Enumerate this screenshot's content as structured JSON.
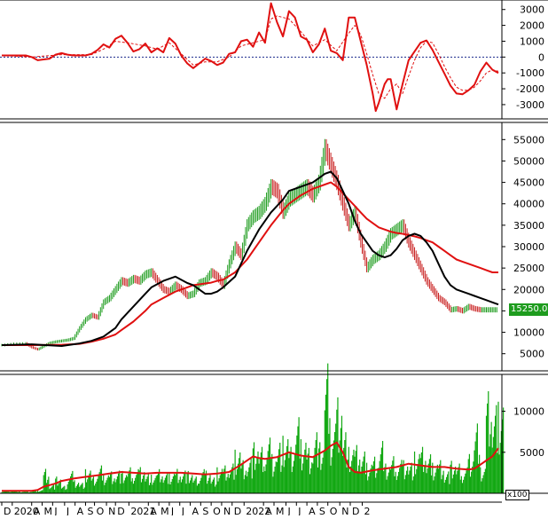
{
  "colors": {
    "background": "#ffffff",
    "frame": "#000000",
    "candle_up": "#1e9c1e",
    "candle_down": "#c81e1e",
    "ma_fast": "#000000",
    "ma_slow": "#e01010",
    "volume_bar": "#12a812",
    "volume_ma": "#e01010",
    "macd_line": "#e01010",
    "signal_line": "#e01010",
    "zero_line": "#1a2a8c"
  },
  "price_badge": "15250.00",
  "volume_unit": "x100",
  "chart_data": [
    {
      "type": "line",
      "panel": "oscillator",
      "title": "",
      "xlabel": "",
      "ylabel": "",
      "ylim": [
        -3900,
        3600
      ],
      "y_ticks": [
        3000,
        2000,
        1000,
        0,
        -1000,
        -2000,
        -3000
      ],
      "y_tick_labels": [
        "3000",
        "2000",
        "1000",
        "0",
        "-1000",
        "-2000",
        "-3000"
      ],
      "zero_line": "dotted",
      "series": [
        {
          "style": "solid",
          "x": [
            0,
            4,
            8,
            10,
            12,
            14,
            16,
            18,
            20,
            22,
            24,
            26,
            28,
            30,
            32,
            34,
            36,
            38,
            40,
            42,
            44,
            46,
            48,
            50,
            52,
            54,
            56,
            58,
            60,
            62,
            64,
            66,
            68,
            70,
            72,
            74,
            76,
            78,
            80,
            82,
            84,
            86,
            88,
            90,
            92,
            94,
            96,
            98,
            100,
            102,
            104,
            106,
            108,
            110,
            112,
            114,
            116,
            118,
            120,
            122,
            124,
            125,
            126,
            128,
            129,
            130,
            132,
            134,
            136,
            138,
            140,
            142,
            144,
            146,
            148,
            150,
            152,
            154,
            156,
            158,
            160,
            162,
            164,
            166
          ],
          "values": [
            100,
            100,
            100,
            0,
            -200,
            -150,
            -100,
            150,
            250,
            150,
            100,
            100,
            100,
            200,
            450,
            800,
            600,
            1150,
            1350,
            900,
            350,
            500,
            850,
            300,
            550,
            300,
            1200,
            850,
            100,
            -400,
            -700,
            -400,
            -100,
            -250,
            -500,
            -350,
            200,
            300,
            1000,
            1100,
            650,
            1550,
            900,
            3400,
            2200,
            1300,
            2900,
            2500,
            1300,
            1100,
            300,
            800,
            1800,
            400,
            250,
            -200,
            2500,
            2500,
            1000,
            -500,
            -2300,
            -3400,
            -2900,
            -1700,
            -1400,
            -1400,
            -3300,
            -1700,
            -200,
            350,
            900,
            1050,
            450,
            -300,
            -1050,
            -1800,
            -2300,
            -2350,
            -2100,
            -1750,
            -900,
            -350,
            -800,
            -1000
          ]
        },
        {
          "style": "dashed",
          "x": [
            0,
            10,
            20,
            30,
            34,
            38,
            42,
            48,
            52,
            56,
            60,
            64,
            68,
            72,
            76,
            80,
            84,
            88,
            90,
            92,
            96,
            100,
            104,
            108,
            112,
            116,
            118,
            120,
            122,
            124,
            126,
            128,
            130,
            132,
            134,
            136,
            138,
            140,
            142,
            144,
            146,
            148,
            150,
            152,
            154,
            156,
            158,
            160,
            162,
            164,
            166
          ],
          "values": [
            100,
            0,
            150,
            150,
            500,
            1000,
            900,
            700,
            500,
            900,
            200,
            -500,
            -300,
            -300,
            0,
            700,
            900,
            1100,
            2400,
            2600,
            2400,
            1600,
            700,
            1100,
            400,
            1500,
            2000,
            1400,
            200,
            -1100,
            -2300,
            -2600,
            -2000,
            -1700,
            -2300,
            -1200,
            -200,
            600,
            1000,
            900,
            200,
            -600,
            -1300,
            -1900,
            -2100,
            -2100,
            -1900,
            -1500,
            -1000,
            -800,
            -900
          ]
        }
      ]
    },
    {
      "type": "line",
      "panel": "price",
      "title": "",
      "xlabel": "",
      "ylabel": "",
      "ylim": [
        1000,
        59000
      ],
      "y_ticks": [
        55000,
        50000,
        45000,
        40000,
        35000,
        30000,
        25000,
        20000,
        15000,
        10000,
        5000
      ],
      "y_tick_labels": [
        "55000",
        "50000",
        "45000",
        "40000",
        "35000",
        "30000",
        "25000",
        "20000",
        "15000",
        "10000",
        "5000"
      ],
      "last_price": 15250,
      "series": [
        {
          "kind": "close",
          "x": [
            0,
            4,
            8,
            10,
            12,
            14,
            16,
            18,
            20,
            22,
            24,
            26,
            28,
            30,
            32,
            34,
            36,
            38,
            40,
            42,
            44,
            46,
            48,
            50,
            52,
            54,
            56,
            58,
            60,
            62,
            64,
            66,
            68,
            70,
            72,
            74,
            76,
            78,
            80,
            82,
            84,
            86,
            88,
            90,
            92,
            94,
            96,
            98,
            100,
            102,
            104,
            106,
            108,
            110,
            112,
            114,
            116,
            118,
            120,
            122,
            124,
            126,
            128,
            130,
            132,
            134,
            136,
            138,
            140,
            142,
            144,
            146,
            148,
            150,
            152,
            154,
            156,
            158,
            160,
            162,
            164,
            166
          ],
          "values": [
            7000,
            7300,
            7400,
            6500,
            6000,
            6800,
            7500,
            7800,
            8000,
            8200,
            8600,
            11000,
            13000,
            14000,
            13500,
            17000,
            18000,
            20000,
            22000,
            21500,
            22500,
            22000,
            23500,
            24000,
            22000,
            20000,
            19500,
            21000,
            20000,
            18500,
            19000,
            21500,
            22000,
            24000,
            23000,
            21000,
            26000,
            30000,
            28000,
            35000,
            37000,
            38000,
            40000,
            44000,
            43000,
            38000,
            41000,
            42000,
            43000,
            44000,
            42000,
            45000,
            53000,
            49000,
            45000,
            40000,
            35000,
            38000,
            31000,
            25000,
            27000,
            28000,
            30000,
            33000,
            34000,
            35000,
            31000,
            28000,
            25000,
            22000,
            20000,
            18000,
            17000,
            15250,
            15500,
            15000,
            16000,
            15500,
            15250,
            15250,
            15250,
            15250
          ]
        },
        {
          "kind": "ma_fast",
          "x": [
            0,
            10,
            20,
            26,
            30,
            34,
            38,
            40,
            44,
            48,
            50,
            54,
            58,
            62,
            64,
            66,
            68,
            70,
            72,
            74,
            78,
            82,
            86,
            90,
            94,
            96,
            100,
            104,
            106,
            108,
            110,
            112,
            114,
            116,
            118,
            120,
            122,
            124,
            126,
            128,
            130,
            132,
            134,
            136,
            138,
            140,
            142,
            144,
            146,
            148,
            150,
            152,
            154,
            156,
            158,
            160,
            162,
            164,
            166
          ],
          "values": [
            7000,
            7200,
            6800,
            7400,
            8000,
            9000,
            11000,
            13000,
            16000,
            19000,
            20500,
            22000,
            23000,
            21500,
            21000,
            20000,
            19000,
            19000,
            19500,
            20500,
            23000,
            29000,
            34000,
            38000,
            41000,
            43000,
            44000,
            45000,
            46000,
            47000,
            47500,
            46000,
            43000,
            40000,
            36000,
            33000,
            31000,
            29000,
            28000,
            27500,
            28000,
            29500,
            31500,
            32500,
            33000,
            32500,
            31000,
            29000,
            26000,
            23000,
            21000,
            20000,
            19500,
            19000,
            18500,
            18000,
            17500,
            17000,
            16500
          ]
        },
        {
          "kind": "ma_slow",
          "x": [
            0,
            10,
            20,
            26,
            30,
            34,
            38,
            40,
            44,
            48,
            50,
            54,
            58,
            62,
            64,
            66,
            68,
            70,
            72,
            74,
            78,
            82,
            86,
            90,
            94,
            96,
            100,
            104,
            106,
            108,
            110,
            112,
            114,
            116,
            118,
            120,
            122,
            124,
            126,
            128,
            130,
            132,
            134,
            136,
            138,
            140,
            142,
            144,
            146,
            148,
            150,
            152,
            154,
            156,
            158,
            160,
            162,
            164,
            166
          ],
          "values": [
            7000,
            7000,
            7100,
            7300,
            7800,
            8500,
            9500,
            10500,
            12500,
            15000,
            16500,
            18000,
            19500,
            20500,
            21000,
            21200,
            21400,
            21600,
            22000,
            22300,
            24000,
            27000,
            31000,
            35000,
            38500,
            40000,
            42000,
            43500,
            44000,
            44500,
            45000,
            44000,
            42500,
            41000,
            39500,
            38000,
            36500,
            35500,
            34500,
            34000,
            33500,
            33200,
            33000,
            32700,
            32400,
            32000,
            31500,
            31000,
            30000,
            29000,
            28000,
            27000,
            26500,
            26000,
            25500,
            25000,
            24500,
            24000,
            24000
          ]
        }
      ]
    },
    {
      "type": "bar",
      "panel": "volume",
      "title": "",
      "xlabel": "",
      "ylabel": "",
      "ylim": [
        0,
        14500
      ],
      "y_ticks": [
        10000,
        5000
      ],
      "y_tick_labels": [
        "10000",
        "5000"
      ],
      "unit": "x100",
      "x": [
        0,
        2,
        4,
        6,
        8,
        10,
        12,
        14,
        16,
        18,
        20,
        22,
        24,
        26,
        28,
        30,
        32,
        34,
        36,
        38,
        40,
        42,
        44,
        46,
        48,
        50,
        52,
        54,
        56,
        58,
        60,
        62,
        64,
        66,
        68,
        70,
        72,
        74,
        76,
        78,
        80,
        82,
        84,
        86,
        88,
        90,
        92,
        94,
        96,
        98,
        100,
        102,
        104,
        106,
        108,
        110,
        112,
        114,
        116,
        118,
        120,
        122,
        124,
        126,
        128,
        130,
        132,
        134,
        136,
        138,
        140,
        142,
        144,
        146,
        148,
        150,
        152,
        154,
        156,
        158,
        160,
        162,
        164,
        166
      ],
      "values": [
        300,
        300,
        300,
        200,
        200,
        300,
        400,
        2800,
        1000,
        1800,
        800,
        2400,
        1500,
        1200,
        2600,
        1800,
        3000,
        2200,
        2500,
        2600,
        2400,
        2800,
        2600,
        3000,
        2200,
        2000,
        2600,
        2200,
        2400,
        2800,
        2600,
        2400,
        1800,
        2600,
        2600,
        1800,
        2800,
        3000,
        3200,
        5000,
        3800,
        4000,
        5500,
        5000,
        6000,
        4500,
        5800,
        6200,
        5000,
        8200,
        6200,
        5200,
        7000,
        5500,
        14000,
        7500,
        11000,
        7000,
        5000,
        5200,
        4500,
        3500,
        4200,
        6000,
        3200,
        4000,
        3600,
        3800,
        3500,
        4500,
        5000,
        4200,
        3500,
        3800,
        2500,
        3500,
        3200,
        2800,
        4500,
        8000,
        2800,
        11000,
        9500,
        10500
      ],
      "series": [
        {
          "kind": "volume_ma",
          "x": [
            0,
            10,
            12,
            14,
            16,
            18,
            20,
            24,
            28,
            30,
            32,
            36,
            40,
            44,
            48,
            52,
            56,
            60,
            64,
            68,
            72,
            76,
            80,
            84,
            86,
            88,
            92,
            96,
            100,
            104,
            108,
            110,
            112,
            114,
            116,
            118,
            120,
            124,
            128,
            132,
            136,
            140,
            144,
            148,
            152,
            156,
            158,
            160,
            162,
            164,
            166
          ],
          "values": [
            300,
            300,
            400,
            800,
            1000,
            1200,
            1500,
            1800,
            2000,
            2100,
            2200,
            2400,
            2600,
            2500,
            2400,
            2500,
            2500,
            2500,
            2400,
            2300,
            2400,
            2600,
            3500,
            4500,
            4300,
            4200,
            4400,
            5000,
            4600,
            4400,
            5200,
            5800,
            6200,
            5000,
            3200,
            2600,
            2500,
            2800,
            3000,
            3200,
            3600,
            3400,
            3200,
            3200,
            3000,
            2900,
            3000,
            3500,
            4000,
            4500,
            5500
          ]
        }
      ]
    }
  ],
  "x_axis": {
    "tick_labels": [
      "D",
      "2020",
      "A",
      "M",
      "J",
      "J",
      "A",
      "S",
      "O",
      "N",
      "D",
      "2021",
      "A",
      "M",
      "J",
      "J",
      "A",
      "S",
      "O",
      "N",
      "D",
      "2022",
      "A",
      "M",
      "J",
      "J",
      "A",
      "S",
      "O",
      "N",
      "D",
      "2"
    ],
    "tick_positions": [
      0,
      3.5,
      10,
      13.5,
      17,
      21,
      24.5,
      28,
      31,
      35,
      38,
      42.5,
      49,
      52.5,
      56,
      59.5,
      63,
      66.5,
      70,
      73.5,
      77,
      81,
      87.5,
      91,
      95,
      98.5,
      102,
      105.5,
      109,
      113,
      116.5,
      120.5
    ]
  }
}
